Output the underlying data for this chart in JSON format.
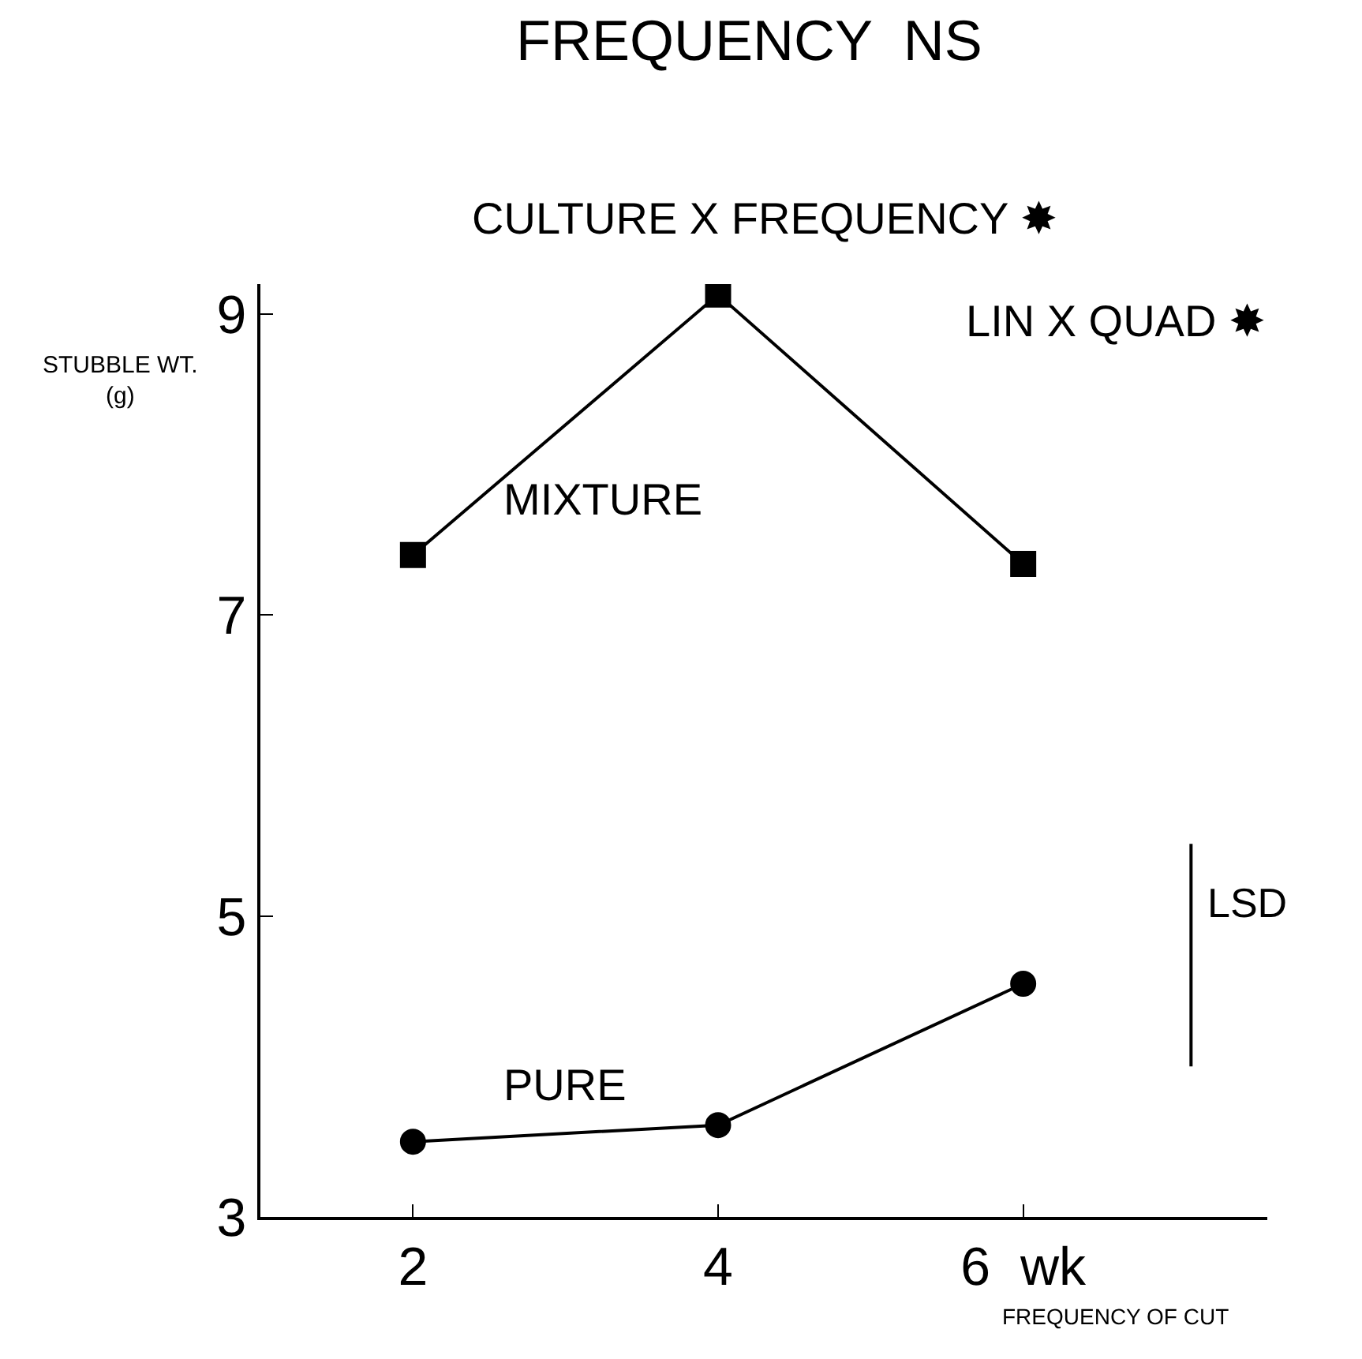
{
  "chart_data": {
    "type": "line",
    "title": "FREQUENCY  NS",
    "annotations": [
      "CULTURE X FREQUENCY ✸",
      "LIN X QUAD ✸"
    ],
    "xlabel": "FREQUENCY OF CUT",
    "ylabel": "STUBBLE WT. (g)",
    "x": [
      2,
      4,
      6
    ],
    "series": [
      {
        "name": "MIXTURE",
        "color": "#000000",
        "marker": "square",
        "values": [
          7.4,
          9.13,
          7.34
        ]
      },
      {
        "name": "PURE",
        "color": "#000000",
        "marker": "circle",
        "values": [
          3.5,
          3.61,
          4.55
        ]
      },
      {
        "name": "LSD",
        "type": "line",
        "color": "#000000",
        "marker": "none",
        "x": [
          7.1,
          7.1
        ],
        "values": [
          4.0,
          5.48
        ]
      }
    ],
    "xlim": [
      1.0,
      7.6
    ],
    "xticks": [
      2,
      4,
      {
        "value": 6,
        "label": "6  wk"
      }
    ],
    "ylim": [
      3,
      9.2
    ],
    "yticks": [
      3,
      5,
      7,
      9
    ],
    "legend": false
  }
}
